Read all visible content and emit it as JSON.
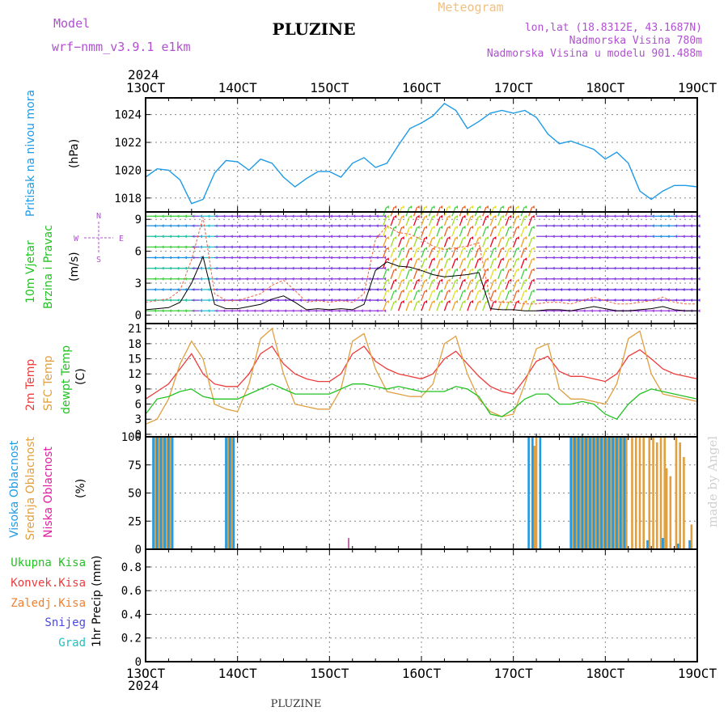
{
  "header": {
    "model_label": "Model",
    "model_name": "wrf−nmm_v3.9.1  e1km",
    "station": "PLUZINE",
    "product": "Meteogram",
    "lonlat": "lon,lat (18.8312E, 43.1687N)",
    "elevation": "Nadmorska Visina 780m",
    "model_elevation": "Nadmorska Visina u modelu 901.488m",
    "year_top": "2024",
    "year_bottom": "2024",
    "footer_station": "PLUZINE",
    "watermark": "made by Angel"
  },
  "time_axis": {
    "ticks": [
      "13OCT",
      "14OCT",
      "15OCT",
      "16OCT",
      "17OCT",
      "18OCT",
      "19OCT"
    ],
    "hours_span": 144
  },
  "colors": {
    "pressure": "#1e9be6",
    "temp2m": "#ee3b3b",
    "sfc": "#e0a040",
    "dewpt": "#22c322",
    "purple": "#b050d0",
    "orange": "#f0a050",
    "grid": "#888888"
  },
  "panels": {
    "pressure": {
      "ylabel_name": "Pritisak na nivou mora",
      "ylabel_unit": "(hPa)",
      "yticks": [
        "1018",
        "1020",
        "1022",
        "1024"
      ]
    },
    "wind": {
      "ylabel_name_1": "10m Vjetar",
      "ylabel_name_2": "Brzina i Pravac",
      "ylabel_unit": "(m/s)",
      "yticks": [
        "0",
        "3",
        "6",
        "9"
      ],
      "compass": {
        "n": "N",
        "s": "S",
        "e": "E",
        "w": "W"
      }
    },
    "temperature": {
      "ylabel_1": "2m Temp",
      "ylabel_2": "SFC Temp",
      "ylabel_3": "dewpt Temp",
      "ylabel_unit": "(C)",
      "yticks": [
        "0",
        "3",
        "6",
        "9",
        "12",
        "15",
        "18",
        "21"
      ]
    },
    "clouds": {
      "ylabel_1": "Visoka Oblacnost",
      "ylabel_2": "Srednja Oblacnost",
      "ylabel_3": "Niska Oblacnost",
      "ylabel_unit": "(%)",
      "yticks": [
        "0",
        "25",
        "50",
        "75",
        "100"
      ]
    },
    "precip": {
      "legend": [
        "Ukupna Kisa",
        "Konvek.Kisa",
        "Zaledj.Kisa",
        "Snijeg",
        "Grad"
      ],
      "legend_colors": [
        "#22c322",
        "#ee3b3b",
        "#f08030",
        "#4a4ae0",
        "#20c0c0"
      ],
      "ylabel": "1hr Precip (mm)",
      "yticks": [
        "0",
        "0.2",
        "0.4",
        "0.6",
        "0.8"
      ]
    }
  },
  "chart_data": [
    {
      "type": "line",
      "name": "pressure",
      "ylim": [
        1017,
        1025.2
      ],
      "x_hours": [
        0,
        3,
        6,
        9,
        12,
        15,
        18,
        21,
        24,
        27,
        30,
        33,
        36,
        39,
        42,
        45,
        48,
        51,
        54,
        57,
        60,
        63,
        66,
        69,
        72,
        75,
        78,
        81,
        84,
        87,
        90,
        93,
        96,
        99,
        102,
        105,
        108,
        111,
        114,
        117,
        120,
        123,
        126,
        129,
        132,
        135,
        138,
        141,
        144
      ],
      "values": [
        1019.5,
        1020.1,
        1020.0,
        1019.3,
        1017.6,
        1017.9,
        1019.8,
        1020.7,
        1020.6,
        1020.0,
        1020.8,
        1020.5,
        1019.5,
        1018.8,
        1019.4,
        1019.9,
        1019.9,
        1019.5,
        1020.5,
        1020.9,
        1020.2,
        1020.5,
        1021.8,
        1023.0,
        1023.4,
        1023.9,
        1024.8,
        1024.3,
        1023.0,
        1023.5,
        1024.1,
        1024.3,
        1024.1,
        1024.3,
        1023.8,
        1022.6,
        1021.9,
        1022.1,
        1021.8,
        1021.5,
        1020.8,
        1021.3,
        1020.5,
        1018.5,
        1017.9,
        1018.5,
        1018.9,
        1018.9,
        1018.8
      ]
    },
    {
      "type": "line",
      "name": "wind",
      "ylim": [
        -0.8,
        9.7
      ],
      "x_hours": [
        0,
        3,
        6,
        9,
        12,
        15,
        18,
        21,
        24,
        27,
        30,
        33,
        36,
        39,
        42,
        45,
        48,
        51,
        54,
        57,
        60,
        63,
        66,
        69,
        72,
        75,
        78,
        81,
        84,
        87,
        90,
        93,
        96,
        99,
        102,
        105,
        108,
        111,
        114,
        117,
        120,
        123,
        126,
        129,
        132,
        135,
        138,
        141,
        144
      ],
      "speed": [
        0.5,
        0.6,
        0.7,
        1.2,
        3.0,
        5.5,
        1.0,
        0.6,
        0.6,
        0.8,
        1.0,
        1.5,
        1.8,
        1.2,
        0.5,
        0.6,
        0.5,
        0.6,
        0.5,
        1.0,
        4.2,
        5.0,
        4.6,
        4.5,
        4.2,
        3.8,
        3.6,
        3.7,
        3.8,
        4.0,
        0.6,
        0.5,
        0.5,
        0.4,
        0.4,
        0.5,
        0.5,
        0.4,
        0.6,
        0.8,
        0.6,
        0.4,
        0.4,
        0.5,
        0.6,
        0.8,
        0.5,
        0.4,
        0.4
      ]
    },
    {
      "type": "line",
      "name": "temperature",
      "ylim": [
        -0.5,
        22
      ],
      "x_hours": [
        0,
        3,
        6,
        9,
        12,
        15,
        18,
        21,
        24,
        27,
        30,
        33,
        36,
        39,
        42,
        45,
        48,
        51,
        54,
        57,
        60,
        63,
        66,
        69,
        72,
        75,
        78,
        81,
        84,
        87,
        90,
        93,
        96,
        99,
        102,
        105,
        108,
        111,
        114,
        117,
        120,
        123,
        126,
        129,
        132,
        135,
        138,
        141,
        144
      ],
      "series": [
        {
          "name": "2m Temp",
          "values": [
            7.0,
            8.5,
            10.0,
            13.0,
            16.0,
            12.0,
            10.0,
            9.5,
            9.5,
            12.0,
            16.0,
            17.5,
            14.0,
            12.0,
            11.0,
            10.5,
            10.5,
            12.0,
            16.0,
            17.5,
            14.5,
            13.0,
            12.0,
            11.5,
            11.0,
            12.0,
            15.0,
            16.5,
            14.0,
            11.5,
            9.5,
            8.5,
            8.0,
            11.0,
            14.5,
            15.5,
            12.5,
            11.5,
            11.5,
            11.0,
            10.5,
            12.0,
            15.5,
            16.8,
            15.0,
            13.0,
            12.0,
            11.5,
            11.0
          ]
        },
        {
          "name": "SFC Temp",
          "values": [
            2.0,
            3.0,
            7.0,
            14.0,
            18.5,
            15.0,
            6.0,
            5.0,
            4.5,
            10.0,
            19.0,
            21.0,
            12.0,
            6.0,
            5.5,
            5.0,
            5.0,
            9.0,
            18.5,
            20.0,
            13.0,
            8.5,
            8.0,
            7.5,
            7.5,
            10.0,
            18.0,
            19.5,
            12.0,
            7.0,
            4.5,
            3.5,
            4.0,
            10.0,
            17.0,
            18.0,
            9.0,
            7.0,
            7.0,
            6.5,
            6.0,
            10.0,
            19.0,
            20.5,
            12.0,
            8.0,
            7.5,
            7.0,
            6.5
          ]
        },
        {
          "name": "dewpt Temp",
          "values": [
            4.0,
            7.0,
            7.5,
            8.5,
            9.0,
            7.5,
            7.0,
            7.0,
            7.0,
            8.0,
            9.0,
            10.0,
            9.0,
            8.0,
            8.0,
            8.0,
            8.0,
            9.0,
            10.0,
            10.0,
            9.5,
            9.0,
            9.5,
            9.0,
            8.5,
            8.5,
            8.5,
            9.5,
            9.0,
            7.5,
            4.0,
            3.5,
            5.0,
            7.0,
            8.0,
            8.0,
            6.0,
            6.0,
            6.5,
            6.0,
            4.0,
            3.0,
            6.0,
            8.0,
            9.0,
            8.5,
            8.0,
            7.5,
            7.0
          ]
        }
      ]
    },
    {
      "type": "bar",
      "name": "clouds",
      "ylim": [
        0,
        100
      ],
      "high_cloud": [
        [
          2,
          100
        ],
        [
          3,
          100
        ],
        [
          4,
          100
        ],
        [
          5,
          100
        ],
        [
          6,
          100
        ],
        [
          7,
          100
        ],
        [
          21,
          100
        ],
        [
          22,
          100
        ],
        [
          23,
          100
        ],
        [
          100,
          100
        ],
        [
          101,
          100
        ],
        [
          103,
          100
        ],
        [
          111,
          100
        ],
        [
          112,
          100
        ],
        [
          113,
          100
        ],
        [
          114,
          100
        ],
        [
          115,
          100
        ],
        [
          116,
          100
        ],
        [
          117,
          100
        ],
        [
          118,
          100
        ],
        [
          119,
          100
        ],
        [
          120,
          100
        ],
        [
          121,
          100
        ],
        [
          122,
          100
        ],
        [
          123,
          100
        ],
        [
          124,
          100
        ],
        [
          125,
          100
        ],
        [
          131,
          8
        ],
        [
          135,
          10
        ],
        [
          139,
          5
        ],
        [
          142,
          8
        ]
      ],
      "mid_cloud": [
        [
          2.5,
          100
        ],
        [
          3.5,
          100
        ],
        [
          4.5,
          100
        ],
        [
          5.5,
          100
        ],
        [
          6.5,
          100
        ],
        [
          21.5,
          100
        ],
        [
          22.5,
          100
        ],
        [
          101.5,
          92
        ],
        [
          102,
          100
        ],
        [
          111.5,
          100
        ],
        [
          112.5,
          100
        ],
        [
          113.5,
          100
        ],
        [
          114.5,
          100
        ],
        [
          115.5,
          100
        ],
        [
          116.5,
          100
        ],
        [
          117.5,
          100
        ],
        [
          118.5,
          100
        ],
        [
          119.5,
          100
        ],
        [
          120.5,
          100
        ],
        [
          121.5,
          100
        ],
        [
          122.5,
          100
        ],
        [
          123.5,
          100
        ],
        [
          124.5,
          100
        ],
        [
          125.5,
          100
        ],
        [
          127,
          100
        ],
        [
          128,
          100
        ],
        [
          129,
          100
        ],
        [
          130,
          100
        ],
        [
          131.5,
          100
        ],
        [
          132.5,
          100
        ],
        [
          133.5,
          95
        ],
        [
          134.5,
          100
        ],
        [
          135.5,
          100
        ],
        [
          136,
          72
        ],
        [
          137,
          65
        ],
        [
          138.5,
          100
        ],
        [
          139.5,
          95
        ],
        [
          140.5,
          82
        ],
        [
          142.5,
          22
        ]
      ],
      "low_cloud": [
        [
          53,
          10
        ]
      ]
    },
    {
      "type": "line",
      "name": "precip",
      "ylim": [
        0,
        0.95
      ],
      "values": []
    }
  ]
}
